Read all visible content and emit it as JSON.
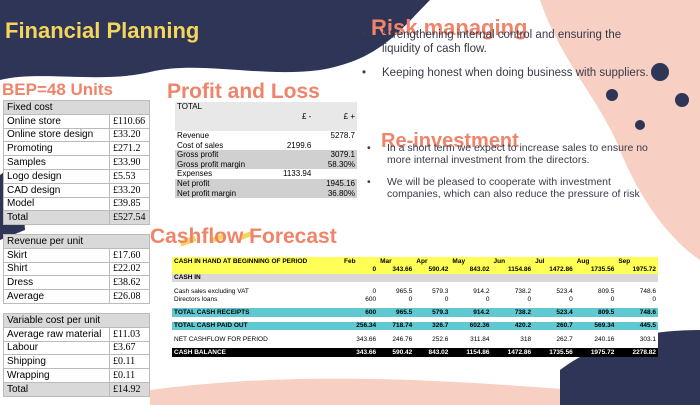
{
  "title": "Financial Planning",
  "bep": {
    "heading": "BEP=48 Units",
    "fixed": {
      "header": "Fixed cost",
      "rows": [
        {
          "label": "Online store",
          "value": "£110.66"
        },
        {
          "label": "Online store design",
          "value": "£33.20"
        },
        {
          "label": "Promoting",
          "value": "£271.2"
        },
        {
          "label": "Samples",
          "value": "£33.90"
        },
        {
          "label": "Logo design",
          "value": "£5.53"
        },
        {
          "label": "CAD design",
          "value": "£33.20"
        },
        {
          "label": "Model",
          "value": "£39.85"
        }
      ],
      "total": {
        "label": "Total",
        "value": "£527.54"
      }
    },
    "revenue": {
      "header": "Revenue per unit",
      "rows": [
        {
          "label": "Skirt",
          "value": "£17.60"
        },
        {
          "label": "Shirt",
          "value": "£22.02"
        },
        {
          "label": "Dress",
          "value": "£38.62"
        },
        {
          "label": "Average",
          "value": "£26.08"
        }
      ]
    },
    "variable": {
      "header": "Variable cost per unit",
      "rows": [
        {
          "label": "Average raw material",
          "value": "£11.03"
        },
        {
          "label": "Labour",
          "value": "£3.67"
        },
        {
          "label": "Shipping",
          "value": "£0.11"
        },
        {
          "label": "Wrapping",
          "value": "£0.11"
        }
      ],
      "total": {
        "label": "Total",
        "value": "£14.92"
      }
    }
  },
  "profit_loss": {
    "heading": "Profit and Loss",
    "col0": "TOTAL",
    "col_minus": "£ -",
    "col_plus": "£ +",
    "rows": [
      {
        "label": "Revenue",
        "minus": "",
        "plus": "5278.7",
        "shade": false
      },
      {
        "label": "Cost of sales",
        "minus": "2199.6",
        "plus": "",
        "shade": false
      },
      {
        "label": "Gross profit",
        "minus": "",
        "plus": "3079.1",
        "shade": true
      },
      {
        "label": "Gross profit margin",
        "minus": "",
        "plus": "58.30%",
        "shade": true
      },
      {
        "label": "Expenses",
        "minus": "1133.94",
        "plus": "",
        "shade": false
      },
      {
        "label": "Net profit",
        "minus": "",
        "plus": "1945.16",
        "shade": true
      },
      {
        "label": "Net profit margin",
        "minus": "",
        "plus": "36.80%",
        "shade": true
      }
    ]
  },
  "cashflow": {
    "heading": "Cashflow Forecast",
    "months": [
      "Feb",
      "Mar",
      "Apr",
      "May",
      "Jun",
      "Jul",
      "Aug",
      "Sep"
    ],
    "opening_label": "CASH IN HAND AT BEGINNING OF PERIOD",
    "opening": [
      "0",
      "343.66",
      "590.42",
      "843.02",
      "1154.86",
      "1472.86",
      "1735.56",
      "1975.72"
    ],
    "cash_in_label": "CASH IN",
    "sales_label": "Cash sales excluding VAT",
    "sales": [
      "0",
      "965.5",
      "579.3",
      "914.2",
      "738.2",
      "523.4",
      "809.5",
      "748.6"
    ],
    "loans_label": "Directors loans",
    "loans": [
      "600",
      "0",
      "0",
      "0",
      "0",
      "0",
      "0",
      "0"
    ],
    "receipts_label": "TOTAL CASH RECEIPTS",
    "receipts": [
      "600",
      "965.5",
      "579.3",
      "914.2",
      "738.2",
      "523.4",
      "809.5",
      "748.6"
    ],
    "paid_label": "TOTAL CASH PAID OUT",
    "paid": [
      "256.34",
      "718.74",
      "326.7",
      "602.36",
      "420.2",
      "260.7",
      "569.34",
      "445.5"
    ],
    "net_label": "NET CASHFLOW FOR PERIOD",
    "net": [
      "343.66",
      "246.76",
      "252.6",
      "311.84",
      "318",
      "262.7",
      "240.16",
      "303.1"
    ],
    "balance_label": "CASH BALANCE",
    "balance": [
      "343.66",
      "590.42",
      "843.02",
      "1154.86",
      "1472.86",
      "1735.56",
      "1975.72",
      "2278.82"
    ]
  },
  "risk": {
    "heading": "Risk managing",
    "bullets": [
      "Strengthening internal control and ensuring the liquidity of cash flow.",
      "Keeping honest when doing business with suppliers."
    ]
  },
  "reinvestment": {
    "heading": "Re-investment",
    "bullets": [
      "In a short term we expect to increase sales to ensure no more internal investment from the directors.",
      "We will be pleased to cooperate with investment companies, which can also reduce the pressure of risk"
    ]
  },
  "colors": {
    "navy": "#2f3556",
    "pink": "#f7cfc3",
    "orange": "#f0846b",
    "yellow": "#f5d65c",
    "teal": "#5fc8d0"
  }
}
